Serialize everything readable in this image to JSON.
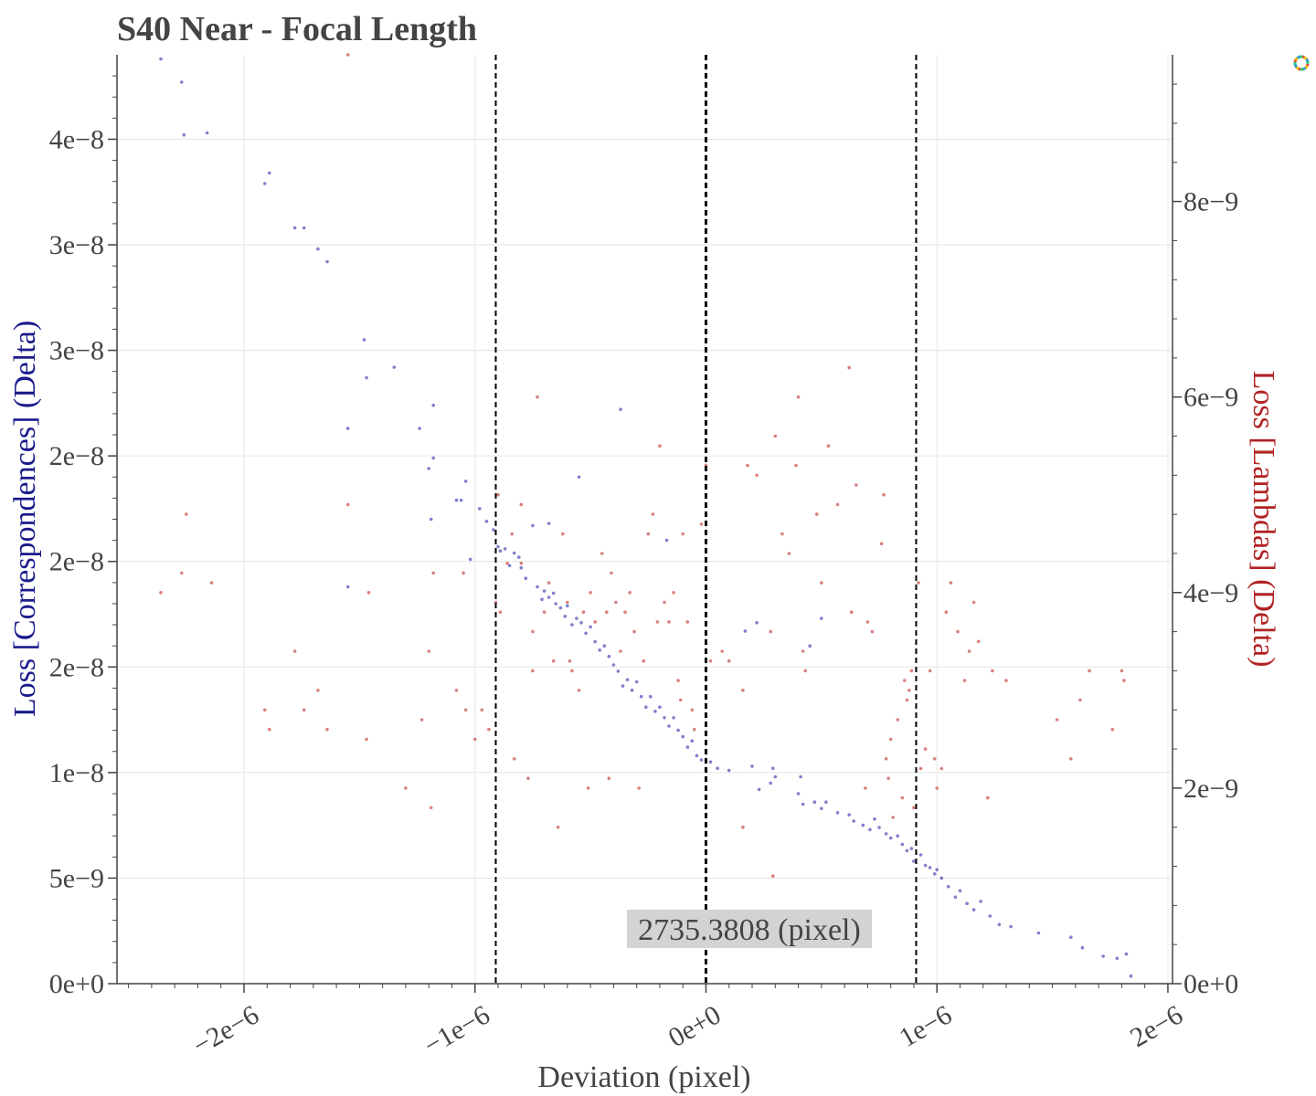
{
  "chart_data": {
    "type": "scatter",
    "title": "S40 Near - Focal Length",
    "xlabel": "Deviation (pixel)",
    "ylabel_left": "Loss [Correspondences] (Delta)",
    "ylabel_right": "Loss [Lambdas] (Delta)",
    "xlim": [
      -2.55e-06,
      2.02e-06
    ],
    "ylim_left": [
      0,
      4.4e-08
    ],
    "ylim_right": [
      0,
      9.5e-09
    ],
    "x_ticks": [
      -2e-06,
      -1e-06,
      0,
      1e-06,
      2e-06
    ],
    "x_tick_labels": [
      "−2e−6",
      "−1e−6",
      "0e+0",
      "1e−6",
      "2e−6"
    ],
    "y_left_ticks": [
      0,
      5e-09,
      1e-08,
      1.5e-08,
      2e-08,
      2.5e-08,
      3e-08,
      3.5e-08,
      4e-08
    ],
    "y_left_tick_labels": [
      "0e+0",
      "5e−9",
      "1e−8",
      "2e−8",
      "2e−8",
      "2e−8",
      "3e−8",
      "3e−8",
      "4e−8"
    ],
    "y_right_ticks": [
      0,
      2e-09,
      4e-09,
      6e-09,
      8e-09
    ],
    "y_right_tick_labels": [
      "0e+0",
      "2e−9",
      "4e−9",
      "6e−9",
      "8e−9"
    ],
    "vlines": [
      {
        "x": -9.1e-07,
        "style": "dashed"
      },
      {
        "x": 0,
        "style": "dashed"
      },
      {
        "x": 9.1e-07,
        "style": "dashed"
      }
    ],
    "annotation": {
      "text": "2735.3808 (pixel)",
      "x": 2e-07,
      "y": 2.2e-09
    },
    "grid": true,
    "series": [
      {
        "axis": "left",
        "color": "#5555bb",
        "points": [
          [
            -2.36e-06,
            4.38e-08
          ],
          [
            -2.27e-06,
            4.27e-08
          ],
          [
            -2.26e-06,
            4.02e-08
          ],
          [
            -2.16e-06,
            4.03e-08
          ],
          [
            -1.91e-06,
            3.79e-08
          ],
          [
            -1.89e-06,
            3.84e-08
          ],
          [
            -1.78e-06,
            3.58e-08
          ],
          [
            -1.74e-06,
            3.58e-08
          ],
          [
            -1.68e-06,
            3.48e-08
          ],
          [
            -1.64e-06,
            3.42e-08
          ],
          [
            -1.55e-06,
            2.63e-08
          ],
          [
            -1.48e-06,
            3.05e-08
          ],
          [
            -1.47e-06,
            2.87e-08
          ],
          [
            -1.35e-06,
            2.92e-08
          ],
          [
            -1.24e-06,
            2.63e-08
          ],
          [
            -1.2e-06,
            2.44e-08
          ],
          [
            -1.18e-06,
            2.74e-08
          ],
          [
            -1.18e-06,
            2.49e-08
          ],
          [
            -1.08e-06,
            2.29e-08
          ],
          [
            -1.06e-06,
            2.29e-08
          ],
          [
            -1.04e-06,
            2.38e-08
          ],
          [
            -1.02e-06,
            2.01e-08
          ],
          [
            -9.8e-07,
            2.25e-08
          ],
          [
            -9.5e-07,
            2.19e-08
          ],
          [
            -9.2e-07,
            2.15e-08
          ],
          [
            -1.19e-06,
            2.2e-08
          ],
          [
            -1.55e-06,
            1.88e-08
          ],
          [
            -9e-07,
            2.07e-08
          ],
          [
            -8.9e-07,
            2.05e-08
          ],
          [
            -8.7e-07,
            2.06e-08
          ],
          [
            -8.5e-07,
            1.98e-08
          ],
          [
            -8.3e-07,
            2.04e-08
          ],
          [
            -8.1e-07,
            2.02e-08
          ],
          [
            -8e-07,
            1.97e-08
          ],
          [
            -7.8e-07,
            1.92e-08
          ],
          [
            -7.5e-07,
            2.17e-08
          ],
          [
            -7.3e-07,
            1.88e-08
          ],
          [
            -7.1e-07,
            1.82e-08
          ],
          [
            -7e-07,
            1.86e-08
          ],
          [
            -6.8e-07,
            1.83e-08
          ],
          [
            -6.6e-07,
            1.85e-08
          ],
          [
            -6.5e-07,
            1.8e-08
          ],
          [
            -6.3e-07,
            1.78e-08
          ],
          [
            -6.1e-07,
            1.74e-08
          ],
          [
            -6e-07,
            1.79e-08
          ],
          [
            -5.8e-07,
            1.7e-08
          ],
          [
            -5.6e-07,
            1.73e-08
          ],
          [
            -5.4e-07,
            1.71e-08
          ],
          [
            -5.2e-07,
            1.66e-08
          ],
          [
            -5e-07,
            1.69e-08
          ],
          [
            -4.8e-07,
            1.62e-08
          ],
          [
            -4.6e-07,
            1.58e-08
          ],
          [
            -4.4e-07,
            1.6e-08
          ],
          [
            -4.2e-07,
            1.55e-08
          ],
          [
            -4e-07,
            1.51e-08
          ],
          [
            -3.8e-07,
            1.48e-08
          ],
          [
            -3.6e-07,
            1.41e-08
          ],
          [
            -3.4e-07,
            1.44e-08
          ],
          [
            -3.2e-07,
            1.39e-08
          ],
          [
            -3e-07,
            1.43e-08
          ],
          [
            -2.8e-07,
            1.36e-08
          ],
          [
            -2.6e-07,
            1.31e-08
          ],
          [
            -2.4e-07,
            1.36e-08
          ],
          [
            -2.2e-07,
            1.29e-08
          ],
          [
            -2e-07,
            1.31e-08
          ],
          [
            -1.8e-07,
            1.26e-08
          ],
          [
            -1.6e-07,
            1.22e-08
          ],
          [
            -1.4e-07,
            1.26e-08
          ],
          [
            -1.2e-07,
            1.2e-08
          ],
          [
            -1e-07,
            1.17e-08
          ],
          [
            -8e-08,
            1.12e-08
          ],
          [
            -6e-08,
            1.15e-08
          ],
          [
            -4e-08,
            1.08e-08
          ],
          [
            -2e-08,
            1.06e-08
          ],
          [
            0,
            1.01e-08
          ],
          [
            2e-08,
            1.05e-08
          ],
          [
            5e-08,
            1.02e-08
          ],
          [
            1e-07,
            1.01e-08
          ],
          [
            2e-07,
            1.03e-08
          ],
          [
            2.3e-07,
            9.2e-09
          ],
          [
            2.8e-07,
            9.5e-09
          ],
          [
            2.9e-07,
            1.02e-08
          ],
          [
            3e-07,
            9.8e-09
          ],
          [
            4e-07,
            9e-09
          ],
          [
            4.2e-07,
            8.5e-09
          ],
          [
            4.1e-07,
            9.8e-09
          ],
          [
            4.7e-07,
            8.6e-09
          ],
          [
            5e-07,
            8.3e-09
          ],
          [
            5.2e-07,
            8.6e-09
          ],
          [
            5.7e-07,
            8.1e-09
          ],
          [
            6.2e-07,
            8e-09
          ],
          [
            6.4e-07,
            7.7e-09
          ],
          [
            6.8e-07,
            7.5e-09
          ],
          [
            7.1e-07,
            7.3e-09
          ],
          [
            7.3e-07,
            7.8e-09
          ],
          [
            7.5e-07,
            7.4e-09
          ],
          [
            7.8e-07,
            7.1e-09
          ],
          [
            8e-07,
            6.9e-09
          ],
          [
            8.3e-07,
            7e-09
          ],
          [
            8.5e-07,
            6.6e-09
          ],
          [
            8.7e-07,
            6.3e-09
          ],
          [
            8.9e-07,
            6.4e-09
          ],
          [
            9e-07,
            5.8e-09
          ],
          [
            9.3e-07,
            6.1e-09
          ],
          [
            9.5e-07,
            5.6e-09
          ],
          [
            9.7e-07,
            5.5e-09
          ],
          [
            9.9e-07,
            5.2e-09
          ],
          [
            1e-06,
            5.4e-09
          ],
          [
            1.02e-06,
            5e-09
          ],
          [
            1.05e-06,
            4.6e-09
          ],
          [
            1.08e-06,
            4.1e-09
          ],
          [
            1.1e-06,
            4.4e-09
          ],
          [
            1.13e-06,
            3.8e-09
          ],
          [
            1.16e-06,
            3.5e-09
          ],
          [
            1.19e-06,
            3.9e-09
          ],
          [
            1.23e-06,
            3.2e-09
          ],
          [
            1.27e-06,
            2.8e-09
          ],
          [
            1.32e-06,
            2.7e-09
          ],
          [
            1.44e-06,
            2.4e-09
          ],
          [
            1.58e-06,
            2.2e-09
          ],
          [
            1.63e-06,
            1.7e-09
          ],
          [
            1.72e-06,
            1.3e-09
          ],
          [
            1.78e-06,
            1.2e-09
          ],
          [
            1.82e-06,
            1.4e-09
          ],
          [
            1.84e-06,
            3.6e-10
          ],
          [
            -6.8e-07,
            2.18e-08
          ],
          [
            -5.5e-07,
            2.4e-08
          ],
          [
            -3.7e-07,
            2.72e-08
          ],
          [
            -1.7e-07,
            2.1e-08
          ],
          [
            1.7e-07,
            1.67e-08
          ],
          [
            2.2e-07,
            1.71e-08
          ],
          [
            4.5e-07,
            1.6e-08
          ],
          [
            5e-07,
            1.73e-08
          ]
        ]
      },
      {
        "axis": "right",
        "color": "#cc5555",
        "points": [
          [
            -2.36e-06,
            4e-09
          ],
          [
            -2.27e-06,
            4.2e-09
          ],
          [
            -2.25e-06,
            4.8e-09
          ],
          [
            -2.14e-06,
            4.1e-09
          ],
          [
            -1.91e-06,
            2.8e-09
          ],
          [
            -1.89e-06,
            2.6e-09
          ],
          [
            -1.78e-06,
            3.4e-09
          ],
          [
            -1.74e-06,
            2.8e-09
          ],
          [
            -1.68e-06,
            3e-09
          ],
          [
            -1.64e-06,
            2.6e-09
          ],
          [
            -1.55e-06,
            4.9e-09
          ],
          [
            -1.47e-06,
            2.5e-09
          ],
          [
            -1.46e-06,
            4e-09
          ],
          [
            -1.55e-06,
            9.5e-09
          ],
          [
            -1.3e-06,
            2e-09
          ],
          [
            -1.23e-06,
            2.7e-09
          ],
          [
            -1.19e-06,
            1.8e-09
          ],
          [
            -1.2e-06,
            3.4e-09
          ],
          [
            -1.18e-06,
            4.2e-09
          ],
          [
            -1.08e-06,
            3e-09
          ],
          [
            -1.05e-06,
            4.2e-09
          ],
          [
            -1.04e-06,
            2.8e-09
          ],
          [
            -1e-06,
            2.5e-09
          ],
          [
            -9.7e-07,
            2.8e-09
          ],
          [
            -9.4e-07,
            2.6e-09
          ],
          [
            -9.1e-07,
            3.9e-09
          ],
          [
            -9e-07,
            5e-09
          ],
          [
            -8.9e-07,
            3.8e-09
          ],
          [
            -8.6e-07,
            4.3e-09
          ],
          [
            -8.4e-07,
            4.6e-09
          ],
          [
            -8.3e-07,
            2.3e-09
          ],
          [
            -8e-07,
            4.3e-09
          ],
          [
            -8e-07,
            4.9e-09
          ],
          [
            -7.7e-07,
            2.1e-09
          ],
          [
            -7.5e-07,
            3.2e-09
          ],
          [
            -7.3e-07,
            6e-09
          ],
          [
            -7e-07,
            3.8e-09
          ],
          [
            -6.8e-07,
            4.1e-09
          ],
          [
            -6.6e-07,
            3.3e-09
          ],
          [
            -6.4e-07,
            1.6e-09
          ],
          [
            -6.2e-07,
            4.6e-09
          ],
          [
            -6e-07,
            3.9e-09
          ],
          [
            -5.8e-07,
            3.2e-09
          ],
          [
            -5.5e-07,
            3e-09
          ],
          [
            -5.3e-07,
            3.8e-09
          ],
          [
            -5.1e-07,
            2e-09
          ],
          [
            -5e-07,
            4e-09
          ],
          [
            -4.8e-07,
            3.7e-09
          ],
          [
            -4.5e-07,
            4.4e-09
          ],
          [
            -4.3e-07,
            3.8e-09
          ],
          [
            -4.1e-07,
            4.2e-09
          ],
          [
            -3.9e-07,
            3.9e-09
          ],
          [
            -3.7e-07,
            3.4e-09
          ],
          [
            -3.5e-07,
            3.8e-09
          ],
          [
            -3.3e-07,
            4e-09
          ],
          [
            -3.1e-07,
            3.6e-09
          ],
          [
            -2.9e-07,
            2e-09
          ],
          [
            -2.7e-07,
            3.3e-09
          ],
          [
            -2.5e-07,
            4.6e-09
          ],
          [
            -2.3e-07,
            4.8e-09
          ],
          [
            -2.1e-07,
            3.7e-09
          ],
          [
            -2e-07,
            5.5e-09
          ],
          [
            -1.8e-07,
            3.9e-09
          ],
          [
            -1.6e-07,
            3.7e-09
          ],
          [
            -1.4e-07,
            4e-09
          ],
          [
            -1.2e-07,
            3.1e-09
          ],
          [
            -1e-07,
            4.6e-09
          ],
          [
            -8e-08,
            3.7e-09
          ],
          [
            -6e-08,
            2.8e-09
          ],
          [
            -5e-08,
            2.6e-09
          ],
          [
            -2e-08,
            4.7e-09
          ],
          [
            0,
            5.3e-09
          ],
          [
            2e-08,
            3.3e-09
          ],
          [
            7e-08,
            3.4e-09
          ],
          [
            1e-07,
            3.3e-09
          ],
          [
            1.6e-07,
            1.6e-09
          ],
          [
            1.8e-07,
            5.3e-09
          ],
          [
            2.2e-07,
            5.2e-09
          ],
          [
            2.8e-07,
            3.6e-09
          ],
          [
            3e-07,
            5.6e-09
          ],
          [
            3.3e-07,
            4.6e-09
          ],
          [
            3.6e-07,
            4.4e-09
          ],
          [
            4e-07,
            6e-09
          ],
          [
            4.2e-07,
            3.4e-09
          ],
          [
            4.3e-07,
            3.2e-09
          ],
          [
            5e-07,
            4.1e-09
          ],
          [
            5.3e-07,
            5.5e-09
          ],
          [
            5.7e-07,
            4.9e-09
          ],
          [
            6.2e-07,
            6.3e-09
          ],
          [
            6.3e-07,
            3.8e-09
          ],
          [
            6.5e-07,
            5.1e-09
          ],
          [
            6.9e-07,
            2e-09
          ],
          [
            7e-07,
            3.7e-09
          ],
          [
            7.2e-07,
            3.6e-09
          ],
          [
            7.6e-07,
            4.5e-09
          ],
          [
            7.7e-07,
            5e-09
          ],
          [
            7.8e-07,
            2.3e-09
          ],
          [
            7.9e-07,
            2.1e-09
          ],
          [
            8e-07,
            2.5e-09
          ],
          [
            8.1e-07,
            1.7e-09
          ],
          [
            8.3e-07,
            2.7e-09
          ],
          [
            8.5e-07,
            1.9e-09
          ],
          [
            8.6e-07,
            3.1e-09
          ],
          [
            8.7e-07,
            2.9e-09
          ],
          [
            8.8e-07,
            3e-09
          ],
          [
            8.9e-07,
            3.2e-09
          ],
          [
            9e-07,
            1.8e-09
          ],
          [
            9.2e-07,
            4.1e-09
          ],
          [
            9.3e-07,
            2.2e-09
          ],
          [
            9.5e-07,
            2.4e-09
          ],
          [
            9.7e-07,
            3.2e-09
          ],
          [
            9.9e-07,
            2.3e-09
          ],
          [
            1e-06,
            2e-09
          ],
          [
            1.02e-06,
            2.2e-09
          ],
          [
            1.04e-06,
            3.8e-09
          ],
          [
            1.06e-06,
            4.1e-09
          ],
          [
            1.09e-06,
            3.6e-09
          ],
          [
            1.12e-06,
            3.1e-09
          ],
          [
            1.14e-06,
            3.4e-09
          ],
          [
            1.16e-06,
            3.9e-09
          ],
          [
            1.18e-06,
            3.5e-09
          ],
          [
            1.22e-06,
            1.9e-09
          ],
          [
            1.24e-06,
            3.2e-09
          ],
          [
            1.3e-06,
            3.1e-09
          ],
          [
            1.52e-06,
            2.7e-09
          ],
          [
            1.58e-06,
            2.3e-09
          ],
          [
            1.62e-06,
            2.9e-09
          ],
          [
            1.66e-06,
            3.2e-09
          ],
          [
            1.76e-06,
            2.6e-09
          ],
          [
            1.8e-06,
            3.2e-09
          ],
          [
            1.81e-06,
            3.1e-09
          ],
          [
            -7.5e-07,
            3.6e-09
          ],
          [
            -5.9e-07,
            3.3e-09
          ],
          [
            -4.2e-07,
            2.1e-09
          ],
          [
            -1.1e-07,
            2.9e-09
          ],
          [
            1.6e-07,
            3e-09
          ],
          [
            2.9e-07,
            1.1e-09
          ],
          [
            3.9e-07,
            5.3e-09
          ],
          [
            4.8e-07,
            4.8e-09
          ]
        ]
      }
    ]
  }
}
